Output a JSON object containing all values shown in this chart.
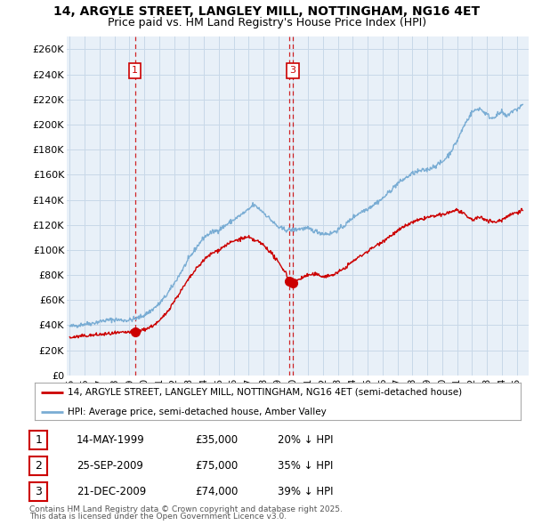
{
  "title": "14, ARGYLE STREET, LANGLEY MILL, NOTTINGHAM, NG16 4ET",
  "subtitle": "Price paid vs. HM Land Registry's House Price Index (HPI)",
  "ylim": [
    0,
    270000
  ],
  "ytick_vals": [
    0,
    20000,
    40000,
    60000,
    80000,
    100000,
    120000,
    140000,
    160000,
    180000,
    200000,
    220000,
    240000,
    260000
  ],
  "ytick_labels": [
    "£0",
    "£20K",
    "£40K",
    "£60K",
    "£80K",
    "£100K",
    "£120K",
    "£140K",
    "£160K",
    "£180K",
    "£200K",
    "£220K",
    "£240K",
    "£260K"
  ],
  "xlim": [
    1994.8,
    2025.8
  ],
  "xticks": [
    1995,
    1996,
    1997,
    1998,
    1999,
    2000,
    2001,
    2002,
    2003,
    2004,
    2005,
    2006,
    2007,
    2008,
    2009,
    2010,
    2011,
    2012,
    2013,
    2014,
    2015,
    2016,
    2017,
    2018,
    2019,
    2020,
    2021,
    2022,
    2023,
    2024,
    2025
  ],
  "sales": [
    {
      "date_label": "14-MAY-1999",
      "date_num": 1999.37,
      "price": 35000,
      "price_str": "£35,000",
      "label": "1",
      "pct": "20% ↓ HPI",
      "show_top_label": true
    },
    {
      "date_label": "25-SEP-2009",
      "date_num": 2009.73,
      "price": 75000,
      "price_str": "£75,000",
      "label": "2",
      "pct": "35% ↓ HPI",
      "show_top_label": false
    },
    {
      "date_label": "21-DEC-2009",
      "date_num": 2009.97,
      "price": 74000,
      "price_str": "£74,000",
      "label": "3",
      "pct": "39% ↓ HPI",
      "show_top_label": true
    }
  ],
  "legend_property": "14, ARGYLE STREET, LANGLEY MILL, NOTTINGHAM, NG16 4ET (semi-detached house)",
  "legend_hpi": "HPI: Average price, semi-detached house, Amber Valley",
  "property_color": "#cc0000",
  "hpi_color": "#7aadd4",
  "chart_bg": "#e8f0f8",
  "footnote_line1": "Contains HM Land Registry data © Crown copyright and database right 2025.",
  "footnote_line2": "This data is licensed under the Open Government Licence v3.0.",
  "background_color": "#ffffff",
  "grid_color": "#c8d8e8"
}
